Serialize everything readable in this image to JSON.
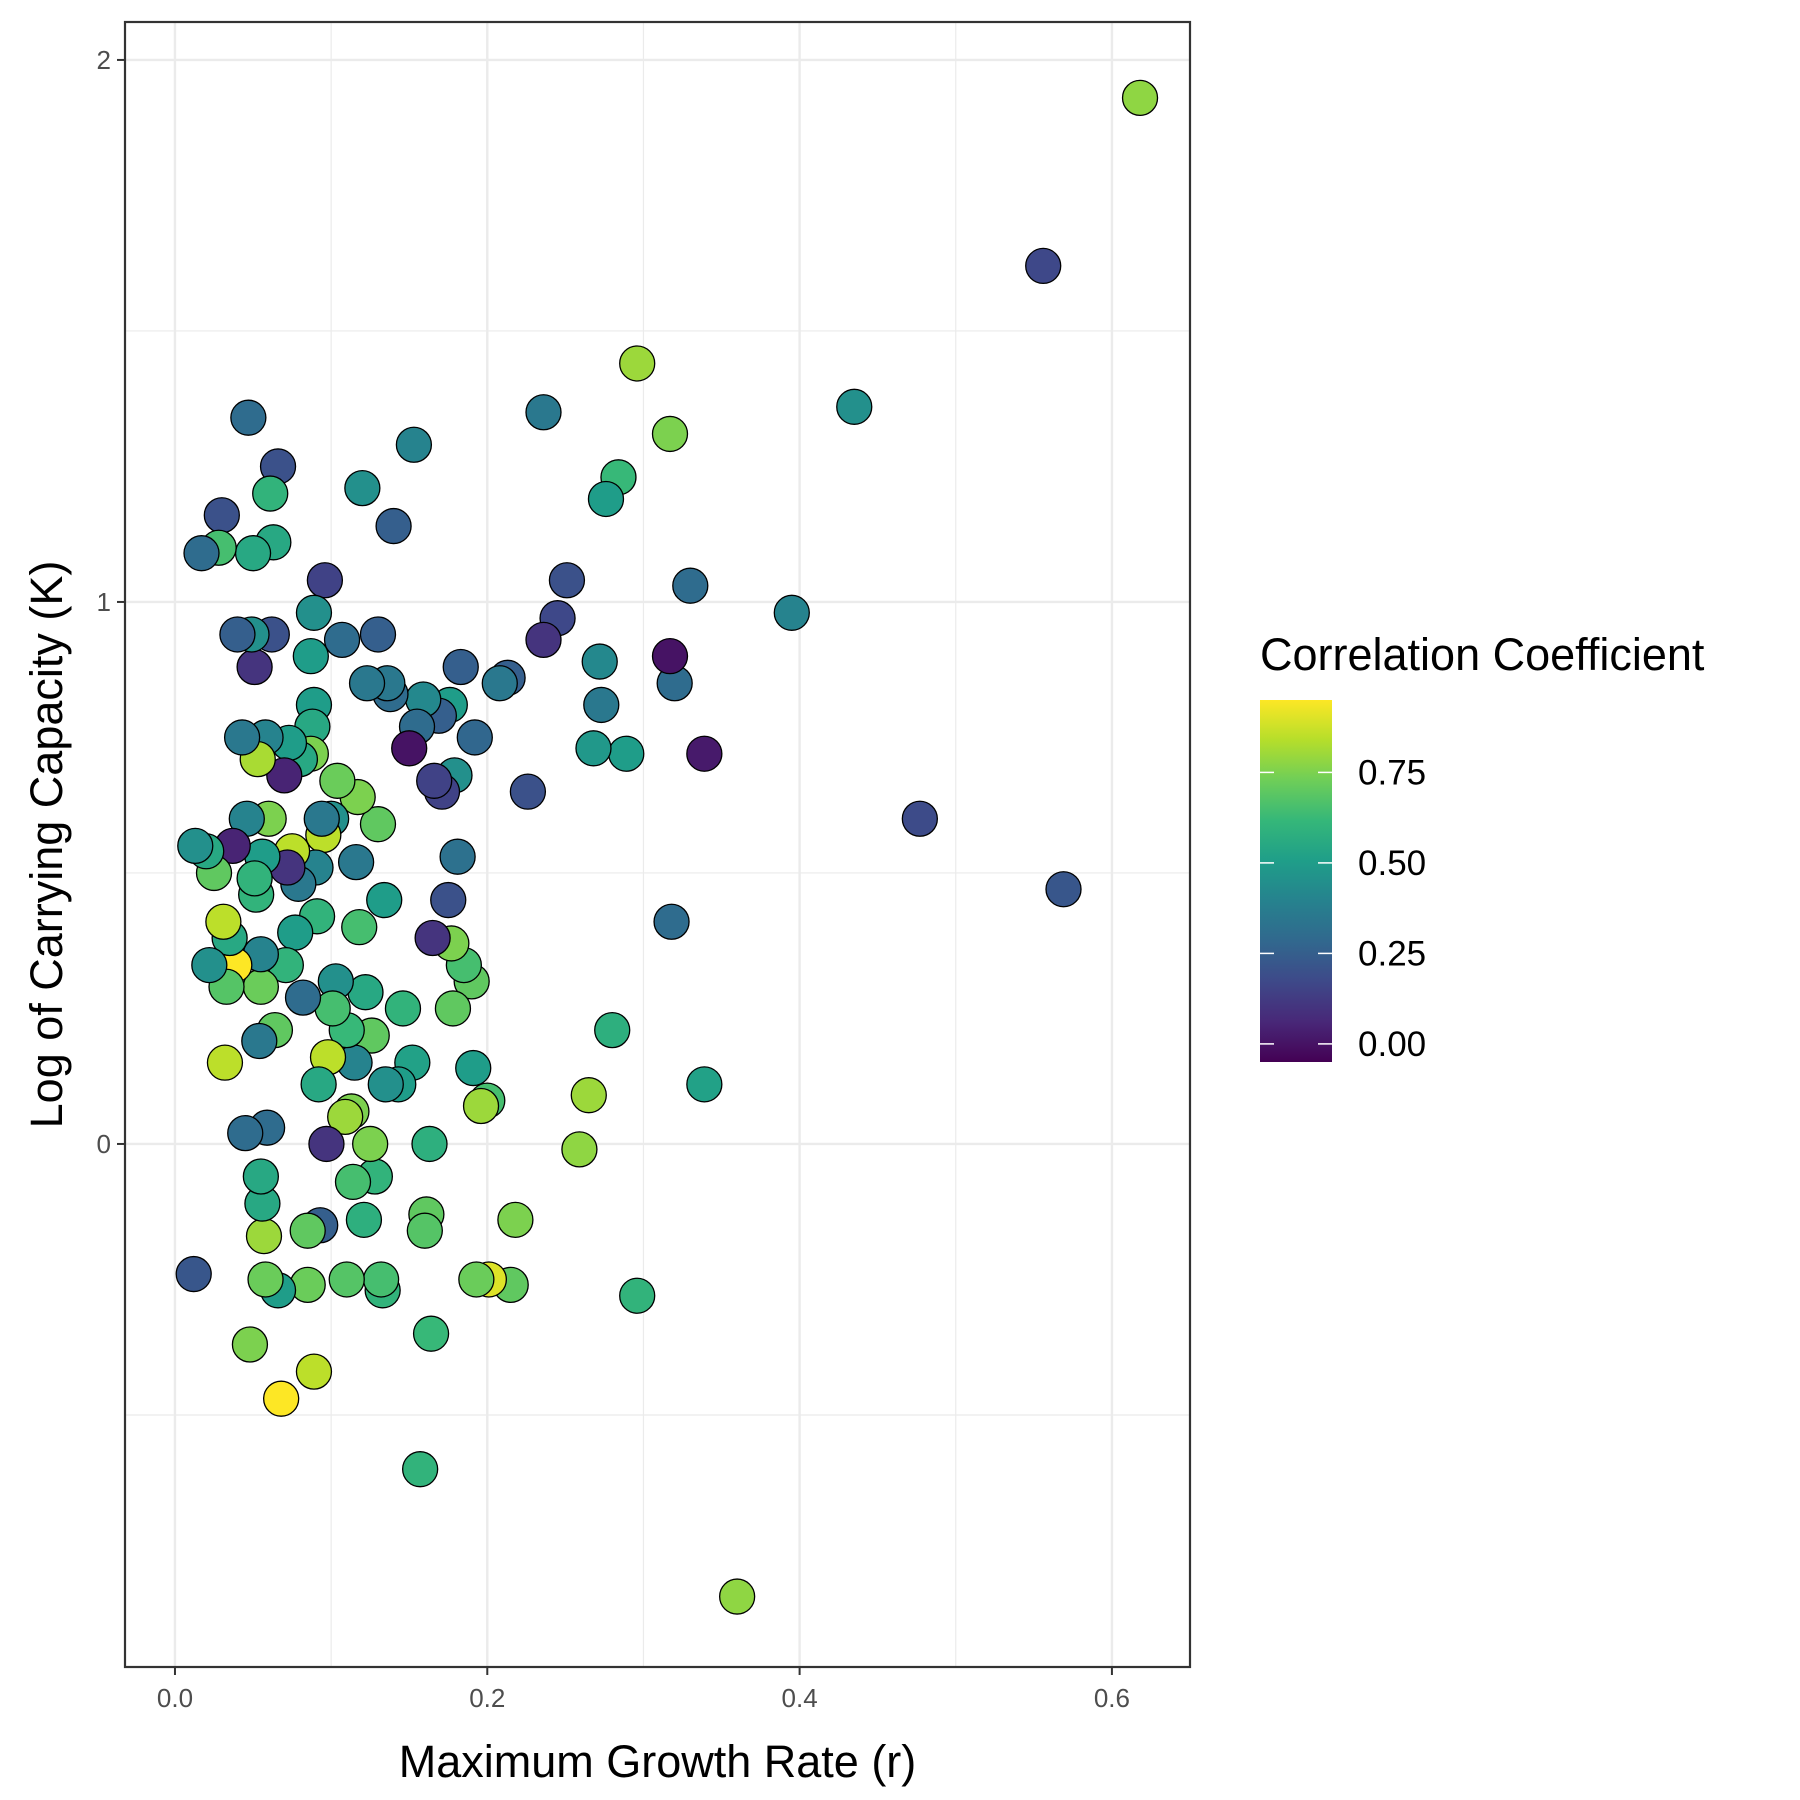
{
  "chart_data": {
    "type": "scatter",
    "title": "",
    "xlabel": "Maximum Growth Rate (r)",
    "ylabel": "Log of Carrying Capacity (K)",
    "xlim": [
      -0.032,
      0.65
    ],
    "ylim": [
      -0.965,
      2.07
    ],
    "x_ticks": [
      0.0,
      0.2,
      0.4,
      0.6
    ],
    "x_tick_labels": [
      "0.0",
      "0.2",
      "0.4",
      "0.6"
    ],
    "y_ticks": [
      0,
      1,
      2
    ],
    "y_tick_labels": [
      "0",
      "1",
      "2"
    ],
    "x_minor_grid": [
      0.1,
      0.3,
      0.5
    ],
    "y_minor_grid": [
      -0.5,
      0.5,
      1.5
    ],
    "grid": true,
    "color_scale": {
      "name": "viridis",
      "min": -0.05,
      "max": 0.95,
      "stops": [
        "#440154",
        "#482878",
        "#3e4989",
        "#31688e",
        "#26828e",
        "#1f9e89",
        "#35b779",
        "#6ece58",
        "#b5de2b",
        "#fde725"
      ]
    },
    "legend": {
      "title": "Correlation Coefficient",
      "placement": "right",
      "ticks": [
        0.0,
        0.25,
        0.5,
        0.75
      ],
      "tick_labels": [
        "0.00",
        "0.25",
        "0.50",
        "0.75"
      ]
    },
    "points": [
      {
        "x": 0.618,
        "y": 1.93,
        "c": 0.78
      },
      {
        "x": 0.556,
        "y": 1.62,
        "c": 0.17
      },
      {
        "x": 0.569,
        "y": 0.47,
        "c": 0.22
      },
      {
        "x": 0.477,
        "y": 0.6,
        "c": 0.18
      },
      {
        "x": 0.435,
        "y": 1.36,
        "c": 0.45
      },
      {
        "x": 0.395,
        "y": 0.98,
        "c": 0.4
      },
      {
        "x": 0.36,
        "y": -0.835,
        "c": 0.78
      },
      {
        "x": 0.339,
        "y": 0.11,
        "c": 0.52
      },
      {
        "x": 0.339,
        "y": 0.72,
        "c": 0.02
      },
      {
        "x": 0.33,
        "y": 1.03,
        "c": 0.3
      },
      {
        "x": 0.32,
        "y": 0.85,
        "c": 0.3
      },
      {
        "x": 0.318,
        "y": 0.41,
        "c": 0.3
      },
      {
        "x": 0.317,
        "y": 0.9,
        "c": 0.0
      },
      {
        "x": 0.317,
        "y": 1.31,
        "c": 0.75
      },
      {
        "x": 0.296,
        "y": 1.44,
        "c": 0.8
      },
      {
        "x": 0.296,
        "y": -0.28,
        "c": 0.6
      },
      {
        "x": 0.289,
        "y": 0.72,
        "c": 0.5
      },
      {
        "x": 0.284,
        "y": 1.23,
        "c": 0.62
      },
      {
        "x": 0.28,
        "y": 0.21,
        "c": 0.58
      },
      {
        "x": 0.276,
        "y": 1.19,
        "c": 0.5
      },
      {
        "x": 0.273,
        "y": 0.81,
        "c": 0.35
      },
      {
        "x": 0.272,
        "y": 0.89,
        "c": 0.42
      },
      {
        "x": 0.268,
        "y": 0.73,
        "c": 0.48
      },
      {
        "x": 0.265,
        "y": 0.09,
        "c": 0.8
      },
      {
        "x": 0.259,
        "y": -0.01,
        "c": 0.78
      },
      {
        "x": 0.251,
        "y": 1.04,
        "c": 0.2
      },
      {
        "x": 0.245,
        "y": 0.97,
        "c": 0.17
      },
      {
        "x": 0.236,
        "y": 1.35,
        "c": 0.35
      },
      {
        "x": 0.236,
        "y": 0.93,
        "c": 0.1
      },
      {
        "x": 0.226,
        "y": 0.65,
        "c": 0.2
      },
      {
        "x": 0.218,
        "y": -0.14,
        "c": 0.75
      },
      {
        "x": 0.215,
        "y": -0.26,
        "c": 0.7
      },
      {
        "x": 0.213,
        "y": 0.86,
        "c": 0.25
      },
      {
        "x": 0.208,
        "y": 0.85,
        "c": 0.35
      },
      {
        "x": 0.201,
        "y": -0.25,
        "c": 0.9
      },
      {
        "x": 0.2,
        "y": 0.08,
        "c": 0.65
      },
      {
        "x": 0.196,
        "y": 0.07,
        "c": 0.8
      },
      {
        "x": 0.193,
        "y": -0.25,
        "c": 0.72
      },
      {
        "x": 0.192,
        "y": 0.75,
        "c": 0.28
      },
      {
        "x": 0.191,
        "y": 0.14,
        "c": 0.5
      },
      {
        "x": 0.19,
        "y": 0.3,
        "c": 0.7
      },
      {
        "x": 0.185,
        "y": 0.33,
        "c": 0.65
      },
      {
        "x": 0.183,
        "y": 0.88,
        "c": 0.25
      },
      {
        "x": 0.181,
        "y": 0.53,
        "c": 0.32
      },
      {
        "x": 0.179,
        "y": 0.68,
        "c": 0.45
      },
      {
        "x": 0.178,
        "y": 0.25,
        "c": 0.7
      },
      {
        "x": 0.177,
        "y": 0.37,
        "c": 0.75
      },
      {
        "x": 0.176,
        "y": 0.81,
        "c": 0.5
      },
      {
        "x": 0.175,
        "y": 0.45,
        "c": 0.2
      },
      {
        "x": 0.171,
        "y": 0.65,
        "c": 0.15
      },
      {
        "x": 0.169,
        "y": 0.79,
        "c": 0.25
      },
      {
        "x": 0.166,
        "y": 0.67,
        "c": 0.15
      },
      {
        "x": 0.165,
        "y": 0.38,
        "c": 0.1
      },
      {
        "x": 0.164,
        "y": -0.35,
        "c": 0.62
      },
      {
        "x": 0.163,
        "y": 0.0,
        "c": 0.58
      },
      {
        "x": 0.161,
        "y": -0.13,
        "c": 0.7
      },
      {
        "x": 0.16,
        "y": -0.16,
        "c": 0.68
      },
      {
        "x": 0.159,
        "y": 0.82,
        "c": 0.42
      },
      {
        "x": 0.157,
        "y": -0.6,
        "c": 0.6
      },
      {
        "x": 0.155,
        "y": 0.77,
        "c": 0.3
      },
      {
        "x": 0.153,
        "y": 1.29,
        "c": 0.4
      },
      {
        "x": 0.152,
        "y": 0.15,
        "c": 0.52
      },
      {
        "x": 0.15,
        "y": 0.73,
        "c": 0.0
      },
      {
        "x": 0.146,
        "y": 0.25,
        "c": 0.6
      },
      {
        "x": 0.143,
        "y": 0.11,
        "c": 0.5
      },
      {
        "x": 0.14,
        "y": 1.14,
        "c": 0.25
      },
      {
        "x": 0.138,
        "y": 0.83,
        "c": 0.3
      },
      {
        "x": 0.136,
        "y": 0.85,
        "c": 0.35
      },
      {
        "x": 0.135,
        "y": 0.11,
        "c": 0.45
      },
      {
        "x": 0.134,
        "y": 0.45,
        "c": 0.5
      },
      {
        "x": 0.133,
        "y": -0.27,
        "c": 0.6
      },
      {
        "x": 0.132,
        "y": -0.25,
        "c": 0.65
      },
      {
        "x": 0.13,
        "y": 0.94,
        "c": 0.25
      },
      {
        "x": 0.13,
        "y": 0.59,
        "c": 0.7
      },
      {
        "x": 0.128,
        "y": -0.06,
        "c": 0.6
      },
      {
        "x": 0.126,
        "y": 0.2,
        "c": 0.7
      },
      {
        "x": 0.125,
        "y": 0.0,
        "c": 0.75
      },
      {
        "x": 0.123,
        "y": 0.85,
        "c": 0.35
      },
      {
        "x": 0.122,
        "y": 0.28,
        "c": 0.55
      },
      {
        "x": 0.121,
        "y": -0.14,
        "c": 0.58
      },
      {
        "x": 0.12,
        "y": 1.21,
        "c": 0.45
      },
      {
        "x": 0.118,
        "y": 0.4,
        "c": 0.65
      },
      {
        "x": 0.117,
        "y": 0.64,
        "c": 0.75
      },
      {
        "x": 0.116,
        "y": 0.52,
        "c": 0.35
      },
      {
        "x": 0.115,
        "y": 0.15,
        "c": 0.4
      },
      {
        "x": 0.114,
        "y": -0.07,
        "c": 0.65
      },
      {
        "x": 0.113,
        "y": 0.06,
        "c": 0.75
      },
      {
        "x": 0.11,
        "y": 0.21,
        "c": 0.62
      },
      {
        "x": 0.11,
        "y": -0.25,
        "c": 0.68
      },
      {
        "x": 0.109,
        "y": 0.05,
        "c": 0.8
      },
      {
        "x": 0.107,
        "y": 0.93,
        "c": 0.3
      },
      {
        "x": 0.104,
        "y": 0.67,
        "c": 0.72
      },
      {
        "x": 0.103,
        "y": 0.3,
        "c": 0.45
      },
      {
        "x": 0.101,
        "y": 0.25,
        "c": 0.65
      },
      {
        "x": 0.1,
        "y": 0.6,
        "c": 0.45
      },
      {
        "x": 0.098,
        "y": 0.16,
        "c": 0.85
      },
      {
        "x": 0.097,
        "y": 0.0,
        "c": 0.1
      },
      {
        "x": 0.096,
        "y": 1.04,
        "c": 0.15
      },
      {
        "x": 0.095,
        "y": 0.57,
        "c": 0.85
      },
      {
        "x": 0.094,
        "y": 0.6,
        "c": 0.35
      },
      {
        "x": 0.093,
        "y": -0.15,
        "c": 0.25
      },
      {
        "x": 0.092,
        "y": 0.11,
        "c": 0.55
      },
      {
        "x": 0.091,
        "y": 0.42,
        "c": 0.6
      },
      {
        "x": 0.09,
        "y": 0.51,
        "c": 0.4
      },
      {
        "x": 0.089,
        "y": 0.98,
        "c": 0.45
      },
      {
        "x": 0.089,
        "y": 0.81,
        "c": 0.5
      },
      {
        "x": 0.089,
        "y": -0.42,
        "c": 0.85
      },
      {
        "x": 0.088,
        "y": 0.77,
        "c": 0.55
      },
      {
        "x": 0.087,
        "y": 0.72,
        "c": 0.75
      },
      {
        "x": 0.087,
        "y": 0.9,
        "c": 0.5
      },
      {
        "x": 0.085,
        "y": -0.26,
        "c": 0.72
      },
      {
        "x": 0.085,
        "y": -0.16,
        "c": 0.7
      },
      {
        "x": 0.082,
        "y": 0.27,
        "c": 0.3
      },
      {
        "x": 0.08,
        "y": 0.71,
        "c": 0.55
      },
      {
        "x": 0.079,
        "y": 0.48,
        "c": 0.35
      },
      {
        "x": 0.077,
        "y": 0.39,
        "c": 0.5
      },
      {
        "x": 0.075,
        "y": 0.54,
        "c": 0.85
      },
      {
        "x": 0.073,
        "y": 0.74,
        "c": 0.5
      },
      {
        "x": 0.072,
        "y": 0.51,
        "c": 0.1
      },
      {
        "x": 0.071,
        "y": 0.33,
        "c": 0.6
      },
      {
        "x": 0.07,
        "y": 0.68,
        "c": 0.05
      },
      {
        "x": 0.068,
        "y": -0.47,
        "c": 0.95
      },
      {
        "x": 0.066,
        "y": 1.25,
        "c": 0.2
      },
      {
        "x": 0.066,
        "y": -0.27,
        "c": 0.5
      },
      {
        "x": 0.064,
        "y": 0.21,
        "c": 0.7
      },
      {
        "x": 0.063,
        "y": 1.11,
        "c": 0.55
      },
      {
        "x": 0.062,
        "y": 0.94,
        "c": 0.2
      },
      {
        "x": 0.061,
        "y": 1.2,
        "c": 0.6
      },
      {
        "x": 0.06,
        "y": 0.6,
        "c": 0.75
      },
      {
        "x": 0.059,
        "y": 0.03,
        "c": 0.3
      },
      {
        "x": 0.058,
        "y": 0.75,
        "c": 0.4
      },
      {
        "x": 0.058,
        "y": -0.25,
        "c": 0.72
      },
      {
        "x": 0.057,
        "y": -0.17,
        "c": 0.8
      },
      {
        "x": 0.056,
        "y": 0.53,
        "c": 0.5
      },
      {
        "x": 0.056,
        "y": -0.11,
        "c": 0.55
      },
      {
        "x": 0.055,
        "y": 0.29,
        "c": 0.72
      },
      {
        "x": 0.055,
        "y": 0.35,
        "c": 0.4
      },
      {
        "x": 0.055,
        "y": -0.06,
        "c": 0.55
      },
      {
        "x": 0.054,
        "y": 0.19,
        "c": 0.35
      },
      {
        "x": 0.053,
        "y": 0.71,
        "c": 0.82
      },
      {
        "x": 0.052,
        "y": 0.46,
        "c": 0.6
      },
      {
        "x": 0.051,
        "y": 0.49,
        "c": 0.6
      },
      {
        "x": 0.051,
        "y": 0.88,
        "c": 0.1
      },
      {
        "x": 0.05,
        "y": 1.09,
        "c": 0.55
      },
      {
        "x": 0.049,
        "y": 0.94,
        "c": 0.45
      },
      {
        "x": 0.048,
        "y": -0.37,
        "c": 0.75
      },
      {
        "x": 0.047,
        "y": 1.34,
        "c": 0.3
      },
      {
        "x": 0.046,
        "y": 0.6,
        "c": 0.4
      },
      {
        "x": 0.045,
        "y": 0.02,
        "c": 0.3
      },
      {
        "x": 0.043,
        "y": 0.75,
        "c": 0.35
      },
      {
        "x": 0.04,
        "y": 0.94,
        "c": 0.25
      },
      {
        "x": 0.038,
        "y": 0.33,
        "c": 0.95
      },
      {
        "x": 0.037,
        "y": 0.55,
        "c": 0.05
      },
      {
        "x": 0.035,
        "y": 0.38,
        "c": 0.55
      },
      {
        "x": 0.033,
        "y": 0.29,
        "c": 0.68
      },
      {
        "x": 0.032,
        "y": 0.15,
        "c": 0.85
      },
      {
        "x": 0.031,
        "y": 0.41,
        "c": 0.85
      },
      {
        "x": 0.03,
        "y": 1.16,
        "c": 0.2
      },
      {
        "x": 0.028,
        "y": 1.1,
        "c": 0.65
      },
      {
        "x": 0.025,
        "y": 0.5,
        "c": 0.7
      },
      {
        "x": 0.022,
        "y": 0.33,
        "c": 0.45
      },
      {
        "x": 0.02,
        "y": 0.54,
        "c": 0.55
      },
      {
        "x": 0.017,
        "y": 1.09,
        "c": 0.3
      },
      {
        "x": 0.013,
        "y": 0.55,
        "c": 0.45
      },
      {
        "x": 0.012,
        "y": -0.24,
        "c": 0.22
      }
    ]
  }
}
